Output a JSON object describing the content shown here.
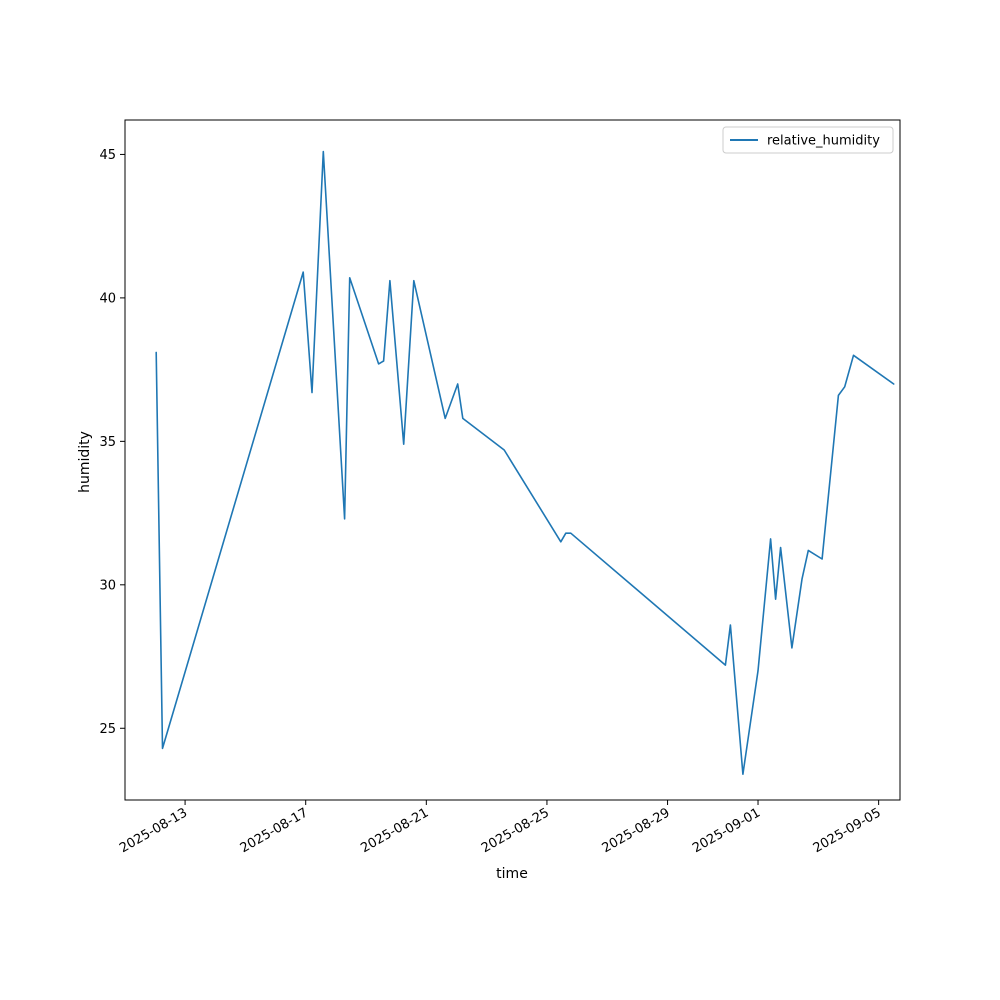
{
  "chart_data": {
    "type": "line",
    "title": "",
    "xlabel": "time",
    "ylabel": "humidity",
    "x_tick_labels": [
      "2025-08-13",
      "2025-08-17",
      "2025-08-21",
      "2025-08-25",
      "2025-08-29",
      "2025-09-01",
      "2025-09-05"
    ],
    "y_tick_labels": [
      "25",
      "30",
      "35",
      "40",
      "45"
    ],
    "ylim": [
      22.5,
      46.2
    ],
    "xlim": [
      "2025-08-11T00:11",
      "2025-09-05T17:00"
    ],
    "grid": false,
    "legend": {
      "position": "top-right"
    },
    "series_color": "#1f77b4",
    "series": [
      {
        "name": "relative_humidity",
        "points": [
          [
            "2025-08-12T01:00",
            38.1
          ],
          [
            "2025-08-12T06:00",
            24.3
          ],
          [
            "2025-08-16T22:00",
            40.9
          ],
          [
            "2025-08-17T05:00",
            36.7
          ],
          [
            "2025-08-17T14:00",
            45.1
          ],
          [
            "2025-08-18T07:00",
            32.3
          ],
          [
            "2025-08-18T11:00",
            40.7
          ],
          [
            "2025-08-19T10:00",
            37.7
          ],
          [
            "2025-08-19T14:00",
            37.8
          ],
          [
            "2025-08-19T19:00",
            40.6
          ],
          [
            "2025-08-20T06:00",
            34.9
          ],
          [
            "2025-08-20T14:00",
            40.6
          ],
          [
            "2025-08-21T15:00",
            35.8
          ],
          [
            "2025-08-22T01:00",
            37.0
          ],
          [
            "2025-08-22T05:00",
            35.8
          ],
          [
            "2025-08-23T14:00",
            34.7
          ],
          [
            "2025-08-25T11:00",
            31.5
          ],
          [
            "2025-08-25T15:00",
            31.8
          ],
          [
            "2025-08-25T19:00",
            31.8
          ],
          [
            "2025-08-30T22:00",
            27.2
          ],
          [
            "2025-08-31T02:00",
            28.6
          ],
          [
            "2025-08-31T12:00",
            23.4
          ],
          [
            "2025-09-01T00:00",
            27.0
          ],
          [
            "2025-09-01T10:00",
            31.6
          ],
          [
            "2025-09-01T14:00",
            29.5
          ],
          [
            "2025-09-01T18:00",
            31.3
          ],
          [
            "2025-09-02T03:00",
            27.8
          ],
          [
            "2025-09-02T11:00",
            30.2
          ],
          [
            "2025-09-02T16:00",
            31.2
          ],
          [
            "2025-09-03T03:00",
            30.9
          ],
          [
            "2025-09-03T16:00",
            36.6
          ],
          [
            "2025-09-03T21:00",
            36.9
          ],
          [
            "2025-09-04T04:00",
            38.0
          ],
          [
            "2025-09-05T12:00",
            37.0
          ]
        ]
      }
    ]
  }
}
